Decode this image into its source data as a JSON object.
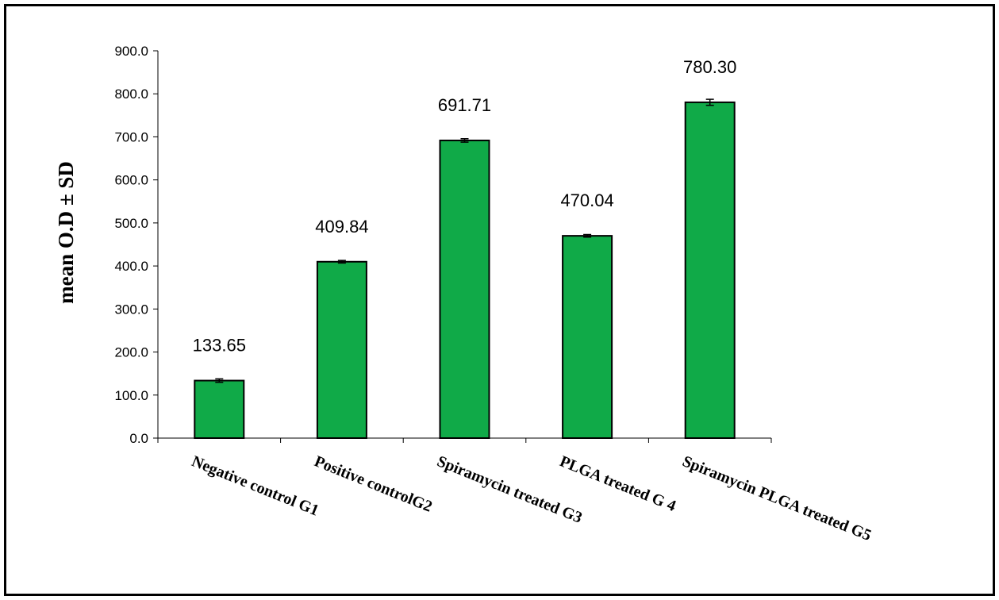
{
  "chart_data": {
    "type": "bar",
    "categories": [
      "Negative control G1",
      "Positive controlG2",
      "Spiramycin treated G3",
      "PLGA treated G 4",
      "Spiramycin PLGA treated G5"
    ],
    "values": [
      133.65,
      409.84,
      691.71,
      470.04,
      780.3
    ],
    "data_labels": [
      "133.65",
      "409.84",
      "691.71",
      "470.04",
      "780.30"
    ],
    "error": [
      4,
      3,
      4,
      3,
      7
    ],
    "title": "",
    "xlabel": "",
    "ylabel": "mean O.D  ± SD",
    "ylim": [
      0,
      900
    ],
    "yticks": [
      "0.0",
      "100.0",
      "200.0",
      "300.0",
      "400.0",
      "500.0",
      "600.0",
      "700.0",
      "800.0",
      "900.0"
    ],
    "bar_color": "#10AA48",
    "grid": false,
    "legend": "none"
  }
}
